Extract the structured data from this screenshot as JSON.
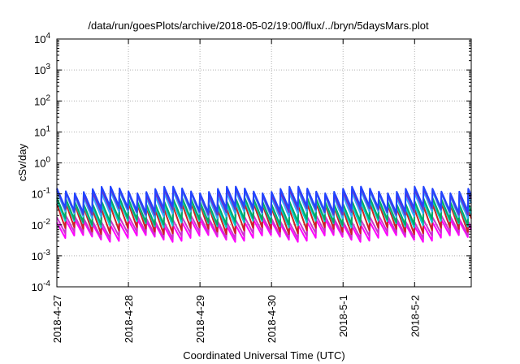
{
  "chart_data": {
    "type": "line",
    "title": "/data/run/goesPlots/archive/2018-05-02/19:00/flux/../bryn/5daysMars.plot",
    "xlabel": "Coordinated Universal Time (UTC)",
    "ylabel": "cSv/day",
    "yscale": "log",
    "ylim": [
      0.0001,
      10000
    ],
    "xlim": [
      "2018-04-27",
      "2018-05-02 19:00"
    ],
    "grid": true,
    "legend": "none",
    "x_ticks": [
      "2018-4-27",
      "2018-4-28",
      "2018-4-29",
      "2018-4-30",
      "2018-5-1",
      "2018-5-2"
    ],
    "y_ticks": [
      {
        "base": "10",
        "exp": "-4"
      },
      {
        "base": "10",
        "exp": "-3"
      },
      {
        "base": "10",
        "exp": "-2"
      },
      {
        "base": "10",
        "exp": "-1"
      },
      {
        "base": "10",
        "exp": "0"
      },
      {
        "base": "10",
        "exp": "1"
      },
      {
        "base": "10",
        "exp": "2"
      },
      {
        "base": "10",
        "exp": "3"
      },
      {
        "base": "10",
        "exp": "4"
      }
    ],
    "cycle_hours": 3,
    "series_colors": [
      "#ff00ff",
      "#cc33cc",
      "#cc2222",
      "#00cccc",
      "#00aa66",
      "#33aaff",
      "#6633cc",
      "#2244ff"
    ],
    "series_peak_values": [
      0.012,
      0.016,
      0.04,
      0.05,
      0.06,
      0.1,
      0.12,
      0.14
    ],
    "series_trough_values": [
      0.0035,
      0.0045,
      0.006,
      0.01,
      0.012,
      0.02,
      0.025,
      0.03
    ]
  }
}
